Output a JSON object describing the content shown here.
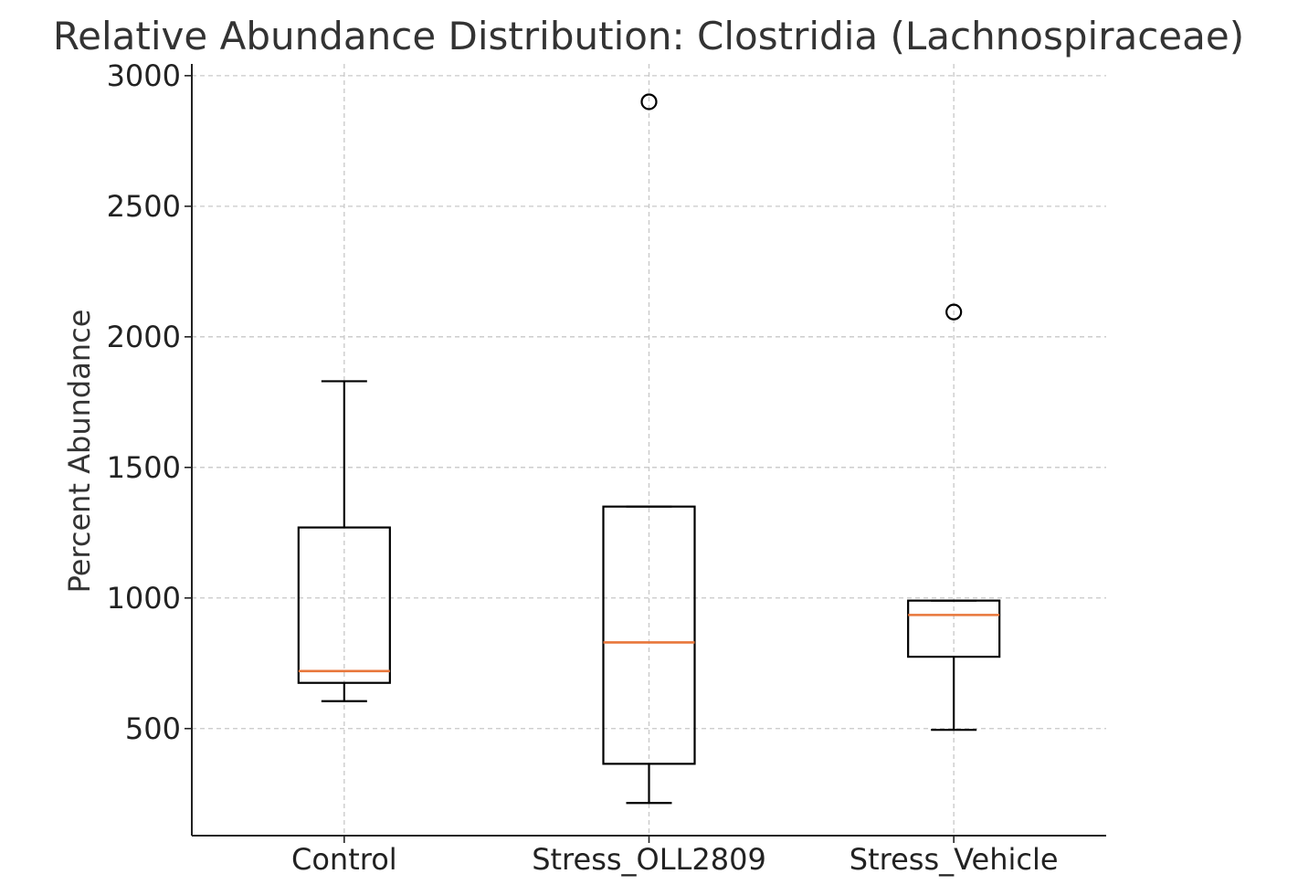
{
  "chart_data": {
    "type": "boxplot",
    "title": "Relative Abundance Distribution: Clostridia (Lachnospiraceae)",
    "xlabel": "",
    "ylabel": "Percent Abundance",
    "ylim": [
      90,
      3045
    ],
    "yticks": [
      500,
      1000,
      1500,
      2000,
      2500,
      3000
    ],
    "grid": true,
    "categories": [
      "Control",
      "Stress_OLL2809",
      "Stress_Vehicle"
    ],
    "boxes": [
      {
        "category": "Control",
        "whisker_low": 605,
        "q1": 675,
        "median": 720,
        "q3": 1270,
        "whisker_high": 1830,
        "outliers": []
      },
      {
        "category": "Stress_OLL2809",
        "whisker_low": 215,
        "q1": 365,
        "median": 830,
        "q3": 1350,
        "whisker_high": 1350,
        "outliers": [
          2900
        ]
      },
      {
        "category": "Stress_Vehicle",
        "whisker_low": 495,
        "q1": 775,
        "median": 935,
        "q3": 990,
        "whisker_high": 990,
        "outliers": [
          2095
        ]
      }
    ],
    "colors": {
      "box": "#000000",
      "median": "#e8763a",
      "grid": "#c8c8c8",
      "text": "#333333"
    }
  }
}
